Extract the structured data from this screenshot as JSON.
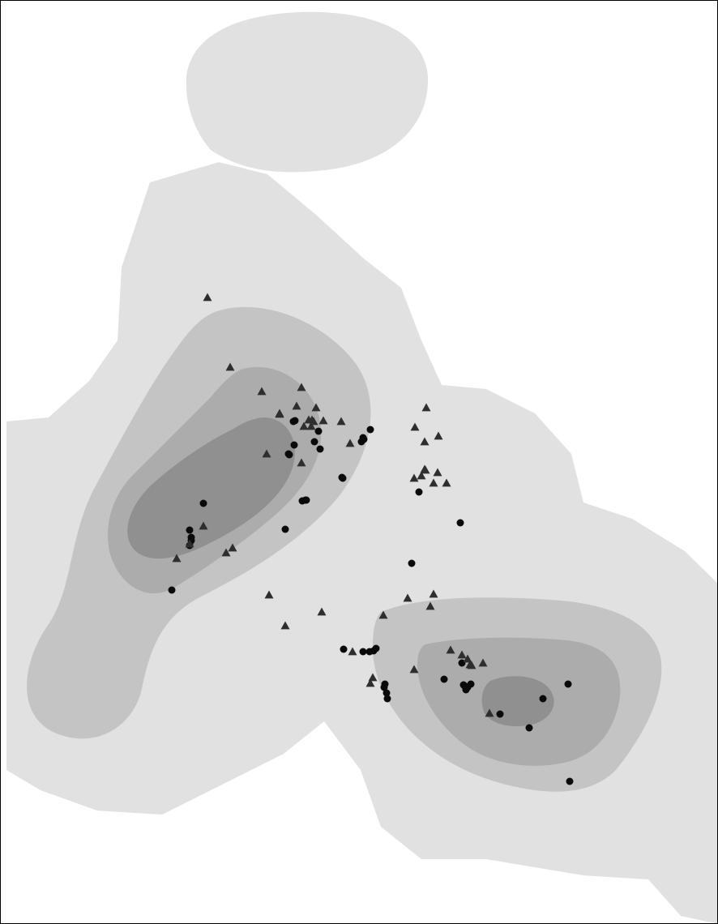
{
  "colors": {
    "background": "#ffffff",
    "border": "#000000",
    "contour_level_1": "#e1e1e1",
    "contour_level_2": "#c4c4c4",
    "contour_level_3": "#acacac",
    "contour_level_4": "#909090",
    "circle_marker": "#0a0a0a",
    "triangle_marker": "#2e2e2e"
  },
  "marker_types": [
    "filled-circle-icon",
    "filled-triangle-icon"
  ],
  "contour_levels": 4,
  "circle_count": 48,
  "triangle_count": 52
}
